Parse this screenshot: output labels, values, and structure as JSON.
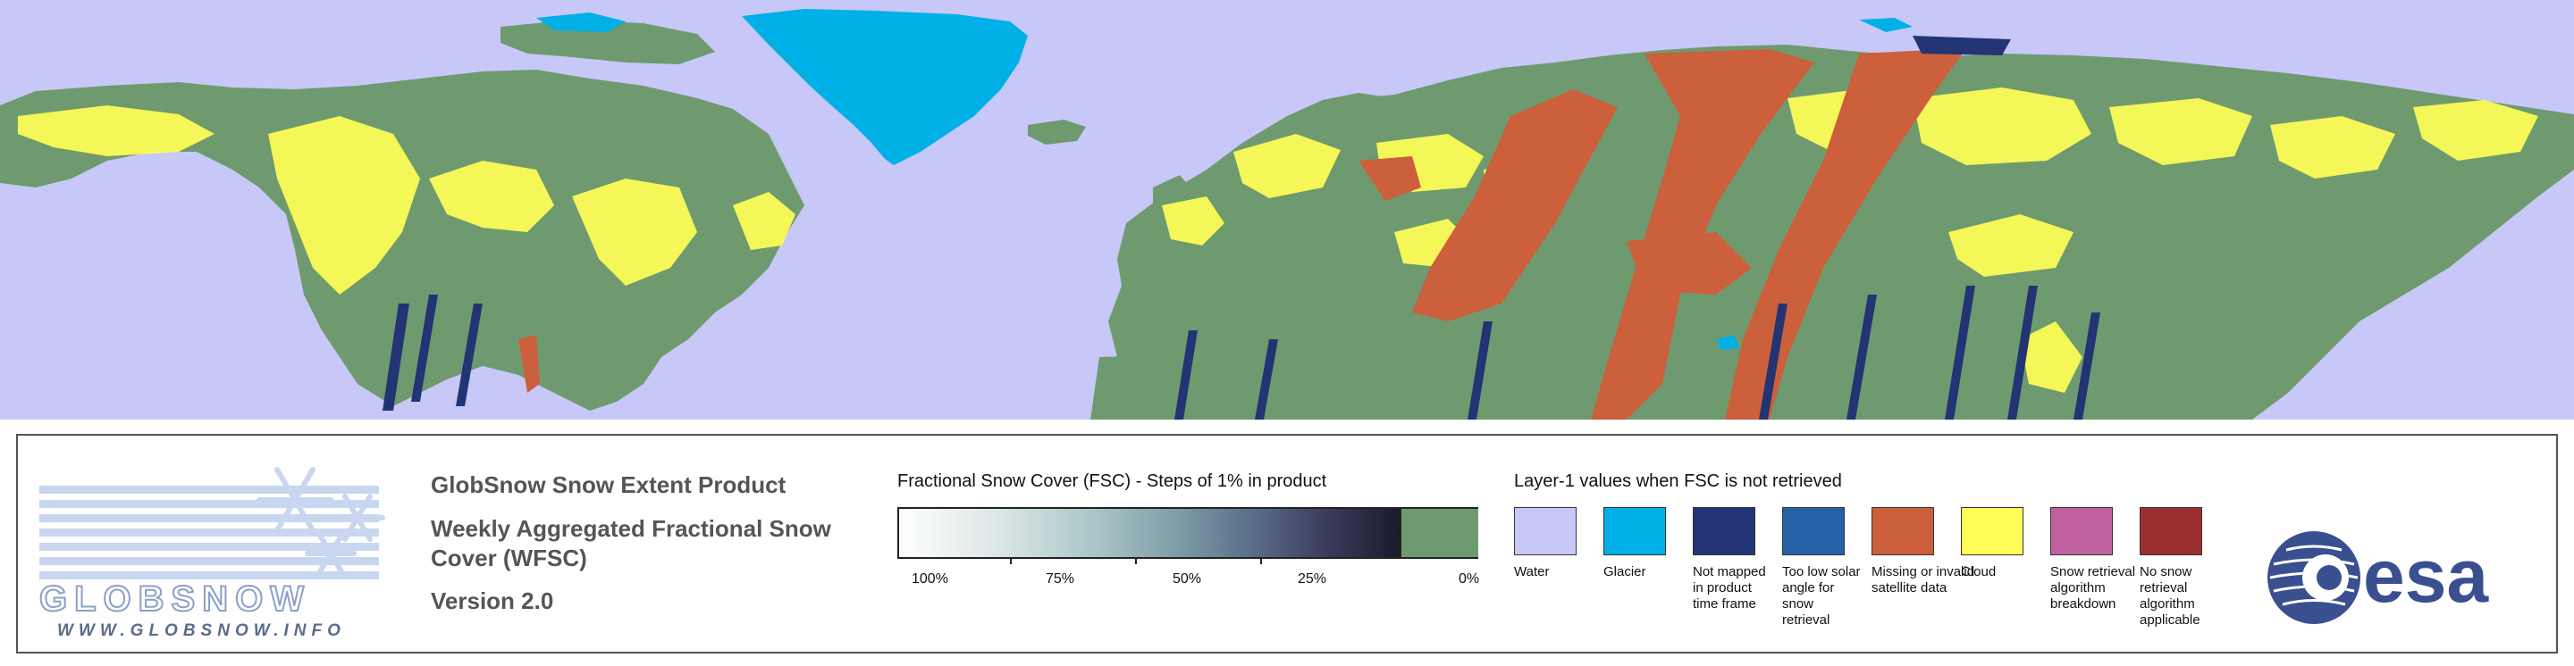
{
  "product": {
    "title": "GlobSnow Snow Extent Product",
    "subtitle": "Weekly Aggregated Fractional Snow Cover (WFSC)",
    "version": "Version 2.0"
  },
  "logo": {
    "name": "GLOBSNOW",
    "url": "WWW.GLOBSNOW.INFO",
    "icon": "snowflake-icon"
  },
  "esa_logo": {
    "text": "esa"
  },
  "fsc_legend": {
    "title": "Fractional Snow Cover (FSC) - Steps of 1% in product",
    "tick_labels": [
      "100%",
      "75%",
      "50%",
      "25%",
      "0%"
    ],
    "tick_values": [
      100,
      75,
      50,
      25,
      0
    ],
    "no_snow_color": "#6f9a6f"
  },
  "layer1_legend": {
    "title": "Layer-1 values when FSC is not retrieved",
    "items": [
      {
        "label": "Water",
        "color": "#c8c8f8"
      },
      {
        "label": "Glacier",
        "color": "#00b0e6"
      },
      {
        "label": "Not mapped in product time frame",
        "color": "#223473"
      },
      {
        "label": "Too low solar angle for snow retrieval",
        "color": "#2660a8"
      },
      {
        "label": "Missing or invalid satellite data",
        "color": "#cc5f3c"
      },
      {
        "label": "Cloud",
        "color": "#ffff55"
      },
      {
        "label": "Snow retrieval algorithm breakdown",
        "color": "#c0609e"
      },
      {
        "label": "No snow retrieval algorithm applicable",
        "color": "#9c2e30"
      }
    ]
  },
  "map": {
    "water_color": "#c8c8f8",
    "land_color": "#6f9a6f",
    "cloud_color": "#ffff55",
    "missing_color": "#cc5f3c",
    "glacier_color": "#00b0e6",
    "not_mapped_color": "#223473"
  }
}
